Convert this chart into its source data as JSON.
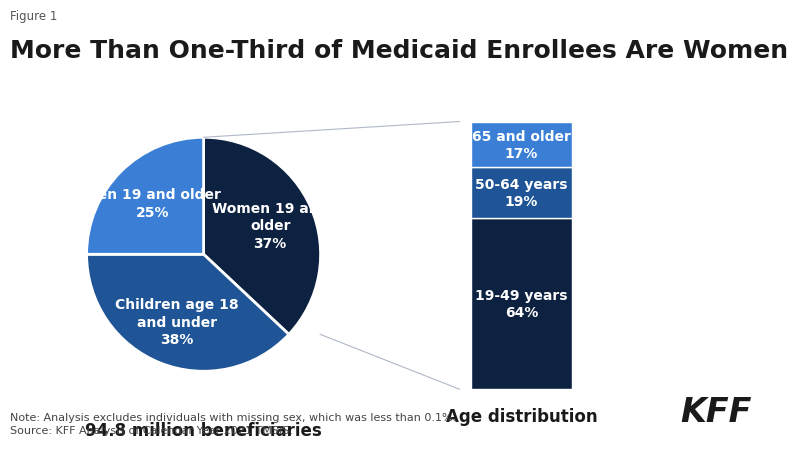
{
  "figure_label": "Figure 1",
  "title": "More Than One-Third of Medicaid Enrollees Are Women",
  "title_fontsize": 18,
  "background_color": "#ffffff",
  "pie_values": [
    37,
    38,
    25
  ],
  "pie_colors": [
    "#0d2240",
    "#1f5496",
    "#3a7fd5"
  ],
  "pie_startangle": 90,
  "pie_labels": [
    "Women 19 and\nolder\n37%",
    "Children age 18\nand under\n38%",
    "Men 19 and older\n25%"
  ],
  "pie_caption": "94.8 million beneficiaries",
  "bar_values": [
    64,
    19,
    17
  ],
  "bar_labels": [
    "19-49 years\n64%",
    "50-64 years\n19%",
    "65 and older\n17%"
  ],
  "bar_colors": [
    "#0d2240",
    "#1f5496",
    "#3a7fd5"
  ],
  "bar_caption": "Age distribution",
  "note_line1": "Note: Analysis excludes individuals with missing sex, which was less than 0.1%.",
  "note_line2": "Source: KFF Analysis of Calendar Year 2021 TMSIS.",
  "kff_label": "KFF",
  "connector_color": "#b0b8c8",
  "label_fontsize": 10,
  "caption_fontsize": 12,
  "note_fontsize": 8
}
